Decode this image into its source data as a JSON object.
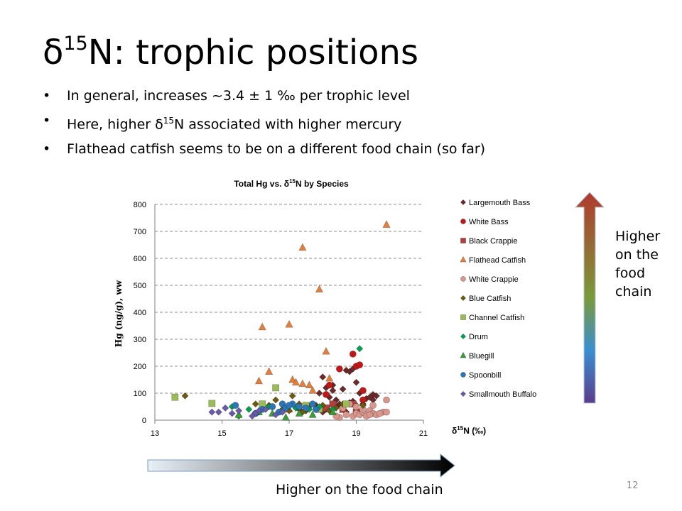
{
  "slide": {
    "title_prefix": "δ",
    "title_sup": "15",
    "title_suffix": "N: trophic positions",
    "bullets": [
      {
        "pre": "In general, increases ~3.4 ± 1 ‰ per trophic level",
        "sup": "",
        "post": ""
      },
      {
        "pre": "Here, higher δ",
        "sup": "15",
        "post": "N associated with higher mercury"
      },
      {
        "pre": "Flathead catfish seems to be on a different food chain (so far)",
        "sup": "",
        "post": ""
      }
    ],
    "bullet_char": "•",
    "page_number": "12",
    "bottom_arrow_label": "Higher on the food chain",
    "side_arrow_label": "Higher on the food chain"
  },
  "colors": {
    "bottom_arrow_start": "#e8f0f8",
    "bottom_arrow_end": "#000000",
    "side_arrow_top": "#b03a2e",
    "side_arrow_mid": "#7a9a3a",
    "side_arrow_lower": "#3a8fd0",
    "side_arrow_bottom": "#5a3d8a"
  },
  "chart_data": {
    "type": "scatter",
    "title_pre": "Total Hg vs. δ",
    "title_sup": "15",
    "title_post": "N by Species",
    "ylabel": "Hg (ng/g), ww",
    "xlabel_pre": "δ",
    "xlabel_sup": "15",
    "xlabel_post": "N (‰)",
    "xlim": [
      13,
      21
    ],
    "ylim": [
      0,
      800
    ],
    "xticks": [
      "13",
      "15",
      "17",
      "19",
      "21"
    ],
    "yticks": [
      "0",
      "100",
      "200",
      "300",
      "400",
      "500",
      "600",
      "700",
      "800"
    ],
    "grid": "horizontal dashed",
    "legend_position": "right",
    "series": [
      {
        "name": "Largemouth Bass",
        "marker": "diamond",
        "color": "#6b2a2a",
        "x": [
          17.9,
          18.0,
          18.1,
          18.2,
          18.3,
          18.4,
          18.5,
          18.6,
          18.7,
          18.8,
          18.9,
          18.9,
          19.0,
          19.0,
          19.1,
          19.2,
          19.3,
          19.5,
          19.5,
          19.6,
          18.1,
          18.4,
          18.6,
          17.8,
          18.3,
          18.8,
          17.5,
          18.0,
          18.7,
          19.4,
          17.3
        ],
        "y": [
          100,
          160,
          120,
          85,
          130,
          75,
          60,
          115,
          185,
          180,
          70,
          190,
          140,
          55,
          100,
          60,
          80,
          95,
          75,
          90,
          40,
          50,
          45,
          55,
          110,
          65,
          35,
          30,
          30,
          85,
          40
        ]
      },
      {
        "name": "White Bass",
        "marker": "circle",
        "color": "#c01818",
        "x": [
          18.5,
          18.9,
          19.0,
          19.1,
          19.2,
          18.1,
          18.2,
          19.2
        ],
        "y": [
          190,
          245,
          200,
          205,
          110,
          95,
          130,
          75
        ]
      },
      {
        "name": "Black Crappie",
        "marker": "square",
        "color": "#b04040",
        "x": [
          18.1,
          18.3,
          18.6,
          18.9,
          19.0
        ],
        "y": [
          45,
          60,
          40,
          60,
          30
        ]
      },
      {
        "name": "Flathead Catfish",
        "marker": "triangle",
        "color": "#e08040",
        "x": [
          16.2,
          16.4,
          16.1,
          17.0,
          17.4,
          17.9,
          19.9,
          18.1,
          17.1,
          17.4,
          17.6,
          17.2,
          17.7,
          18.2,
          17.0
        ],
        "y": [
          345,
          180,
          145,
          355,
          640,
          485,
          725,
          255,
          150,
          135,
          130,
          140,
          110,
          155,
          40
        ]
      },
      {
        "name": "White Crappie",
        "marker": "circle",
        "color": "#d9968c",
        "x": [
          18.5,
          18.7,
          18.9,
          19.0,
          19.1,
          19.2,
          19.3,
          19.4,
          19.5,
          19.6,
          19.8,
          19.9,
          18.6,
          18.8,
          19.0,
          19.2,
          19.4,
          19.5,
          19.7,
          18.4,
          19.9
        ],
        "y": [
          10,
          20,
          15,
          25,
          20,
          30,
          15,
          35,
          25,
          20,
          30,
          75,
          45,
          60,
          50,
          40,
          20,
          55,
          25,
          15,
          30
        ]
      },
      {
        "name": "Blue Catfish",
        "marker": "diamond",
        "color": "#6b5a10",
        "x": [
          13.9,
          16.0,
          16.4,
          16.6,
          16.8,
          17.0,
          17.1,
          17.2,
          17.3,
          17.5,
          17.6,
          17.8,
          18.0,
          18.2,
          18.4,
          18.6,
          19.2,
          17.4,
          17.9
        ],
        "y": [
          90,
          60,
          55,
          75,
          40,
          35,
          90,
          45,
          60,
          35,
          50,
          40,
          55,
          35,
          45,
          60,
          55,
          30,
          45
        ]
      },
      {
        "name": "Channel Catfish",
        "marker": "square",
        "color": "#9bbb59",
        "x": [
          13.6,
          14.7,
          16.2,
          16.6,
          17.5,
          18.7,
          17.9
        ],
        "y": [
          85,
          62,
          60,
          120,
          55,
          60,
          40
        ]
      },
      {
        "name": "Drum",
        "marker": "diamond",
        "color": "#00a050",
        "x": [
          15.3,
          15.8,
          16.1,
          16.4,
          16.8,
          17.2,
          17.6,
          17.9,
          18.3,
          19.1,
          15.5
        ],
        "y": [
          50,
          40,
          30,
          50,
          35,
          45,
          40,
          50,
          40,
          265,
          15
        ]
      },
      {
        "name": "Bluegill",
        "marker": "triangle",
        "color": "#3c9a3c",
        "x": [
          15.5,
          16.5,
          16.9,
          17.3,
          17.7,
          18.3,
          16.1
        ],
        "y": [
          20,
          25,
          10,
          25,
          20,
          30,
          30
        ]
      },
      {
        "name": "Spoonbill",
        "marker": "circle",
        "color": "#2e75b6",
        "x": [
          15.4,
          16.0,
          16.2,
          16.5,
          16.8,
          16.9,
          17.1,
          17.3,
          17.5,
          17.7,
          17.8,
          16.7,
          17.0
        ],
        "y": [
          55,
          25,
          40,
          50,
          60,
          45,
          60,
          50,
          45,
          60,
          40,
          30,
          55
        ]
      },
      {
        "name": "Smallmouth Buffalo",
        "marker": "diamond",
        "color": "#6a5aaa",
        "x": [
          14.7,
          14.9,
          15.1,
          15.3,
          15.5,
          15.9,
          16.0,
          16.1,
          16.3,
          16.6,
          16.8
        ],
        "y": [
          30,
          30,
          45,
          25,
          35,
          15,
          25,
          35,
          40,
          20,
          30
        ]
      }
    ]
  }
}
